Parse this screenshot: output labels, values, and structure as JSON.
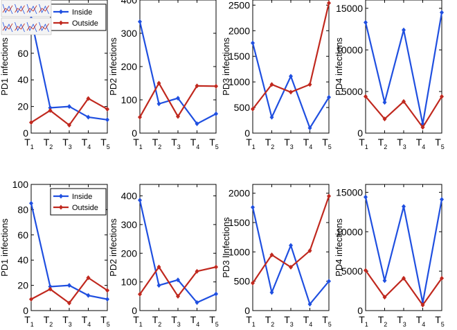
{
  "colors": {
    "inside": "#1f4fe0",
    "outside": "#c0281e",
    "axis": "#000000"
  },
  "legend": {
    "entries": [
      "Inside",
      "Outside"
    ],
    "placement": "top-right"
  },
  "x_tick_labels": [
    {
      "main": "T",
      "sub": "1"
    },
    {
      "main": "T",
      "sub": "2"
    },
    {
      "main": "T",
      "sub": "3"
    },
    {
      "main": "T",
      "sub": "4"
    },
    {
      "main": "T",
      "sub": "5"
    }
  ],
  "chart_data": [
    {
      "type": "line",
      "row": 0,
      "col": 0,
      "ylabel": "PD1 infections",
      "ylim": [
        0,
        100
      ],
      "yticks": [
        0,
        20,
        40,
        60
      ],
      "x": [
        1,
        2,
        3,
        4,
        5
      ],
      "has_legend": true,
      "thumbnails": true,
      "series": [
        {
          "name": "Inside",
          "values": [
            86,
            19,
            20,
            12,
            10
          ]
        },
        {
          "name": "Outside",
          "values": [
            8,
            17,
            6,
            26,
            18
          ]
        }
      ]
    },
    {
      "type": "line",
      "row": 0,
      "col": 1,
      "ylabel": "PD2 infections",
      "ylim": [
        0,
        400
      ],
      "yticks": [
        0,
        100,
        200,
        300,
        400
      ],
      "x": [
        1,
        2,
        3,
        4,
        5
      ],
      "series": [
        {
          "name": "Inside",
          "values": [
            335,
            88,
            105,
            28,
            58
          ]
        },
        {
          "name": "Outside",
          "values": [
            48,
            150,
            50,
            142,
            141
          ]
        }
      ]
    },
    {
      "type": "line",
      "row": 0,
      "col": 2,
      "ylabel": "PD3 infections",
      "ylim": [
        0,
        2600
      ],
      "yticks": [
        0,
        500,
        1000,
        1500,
        2000,
        2500
      ],
      "x": [
        1,
        2,
        3,
        4,
        5
      ],
      "series": [
        {
          "name": "Inside",
          "values": [
            1760,
            310,
            1110,
            100,
            700
          ]
        },
        {
          "name": "Outside",
          "values": [
            470,
            950,
            800,
            950,
            2540
          ]
        }
      ]
    },
    {
      "type": "line",
      "row": 0,
      "col": 3,
      "ylabel": "PD4 infections",
      "ylim": [
        0,
        16000
      ],
      "yticks": [
        0,
        5000,
        10000,
        15000
      ],
      "x": [
        1,
        2,
        3,
        4,
        5
      ],
      "series": [
        {
          "name": "Inside",
          "values": [
            13300,
            3700,
            12400,
            1100,
            14500
          ]
        },
        {
          "name": "Outside",
          "values": [
            4400,
            1700,
            3800,
            700,
            4400
          ]
        }
      ]
    },
    {
      "type": "line",
      "row": 1,
      "col": 0,
      "ylabel": "PD1 infections",
      "ylim": [
        0,
        100
      ],
      "yticks": [
        0,
        20,
        40,
        60,
        80,
        100
      ],
      "x": [
        1,
        2,
        3,
        4,
        5
      ],
      "has_legend": true,
      "series": [
        {
          "name": "Inside",
          "values": [
            85,
            19,
            20,
            12,
            9
          ]
        },
        {
          "name": "Outside",
          "values": [
            9,
            17,
            6,
            26,
            16
          ]
        }
      ]
    },
    {
      "type": "line",
      "row": 1,
      "col": 1,
      "ylabel": "PD2 infections",
      "ylim": [
        0,
        440
      ],
      "yticks": [
        0,
        100,
        200,
        300,
        400
      ],
      "x": [
        1,
        2,
        3,
        4,
        5
      ],
      "series": [
        {
          "name": "Inside",
          "values": [
            385,
            88,
            107,
            28,
            58
          ]
        },
        {
          "name": "Outside",
          "values": [
            57,
            152,
            50,
            137,
            152
          ]
        }
      ]
    },
    {
      "type": "line",
      "row": 1,
      "col": 2,
      "ylabel": "PD3 lInfections",
      "ylim": [
        0,
        2150
      ],
      "yticks": [
        0,
        500,
        1000,
        1500,
        2000
      ],
      "x": [
        1,
        2,
        3,
        4,
        5
      ],
      "series": [
        {
          "name": "Inside",
          "values": [
            1760,
            310,
            1110,
            110,
            500
          ]
        },
        {
          "name": "Outside",
          "values": [
            470,
            950,
            740,
            1020,
            1950
          ]
        }
      ]
    },
    {
      "type": "line",
      "row": 1,
      "col": 3,
      "ylabel": "PD4 infections",
      "ylim": [
        0,
        16000
      ],
      "yticks": [
        0,
        5000,
        10000,
        15000
      ],
      "x": [
        1,
        2,
        3,
        4,
        5
      ],
      "series": [
        {
          "name": "Inside",
          "values": [
            14400,
            3800,
            13200,
            1000,
            14100
          ]
        },
        {
          "name": "Outside",
          "values": [
            5100,
            1700,
            4100,
            700,
            4100
          ]
        }
      ]
    }
  ]
}
